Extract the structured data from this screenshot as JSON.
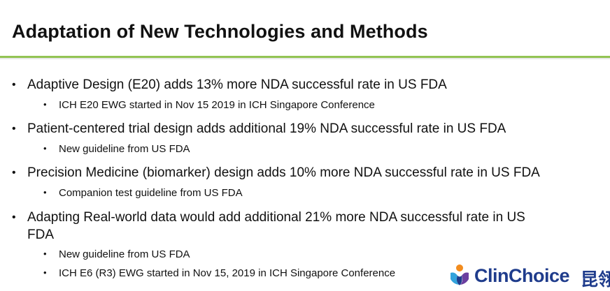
{
  "title": "Adaptation of New Technologies and Methods",
  "bullets": [
    {
      "text": "Adaptive Design (E20) adds 13% more NDA successful rate in US FDA",
      "sub": [
        "ICH E20 EWG started in Nov 15 2019 in ICH Singapore Conference"
      ]
    },
    {
      "text": "Patient-centered trial design adds additional 19% NDA successful rate in US FDA",
      "sub": [
        "New guideline from US FDA"
      ]
    },
    {
      "text": "Precision Medicine (biomarker) design adds 10% more NDA successful rate in US FDA",
      "sub": [
        "Companion test guideline from US FDA"
      ]
    },
    {
      "text_line1": "Adapting Real-world data would add additional 21% more NDA successful rate in US",
      "text_line2": "FDA",
      "sub": [
        "New guideline from US FDA",
        "ICH E6 (R3) EWG started in Nov 15, 2019 in ICH Singapore Conference"
      ]
    }
  ],
  "bullet_glyph": "•",
  "logo": {
    "name": "ClinChoice",
    "chinese": "昆翎",
    "colors": {
      "blue": "#1f3c8c",
      "orange": "#f28c1e",
      "light_blue": "#33a3dc",
      "purple": "#6b3fa0"
    }
  },
  "colors": {
    "accent_rule": "#92c353",
    "text": "#111111"
  }
}
